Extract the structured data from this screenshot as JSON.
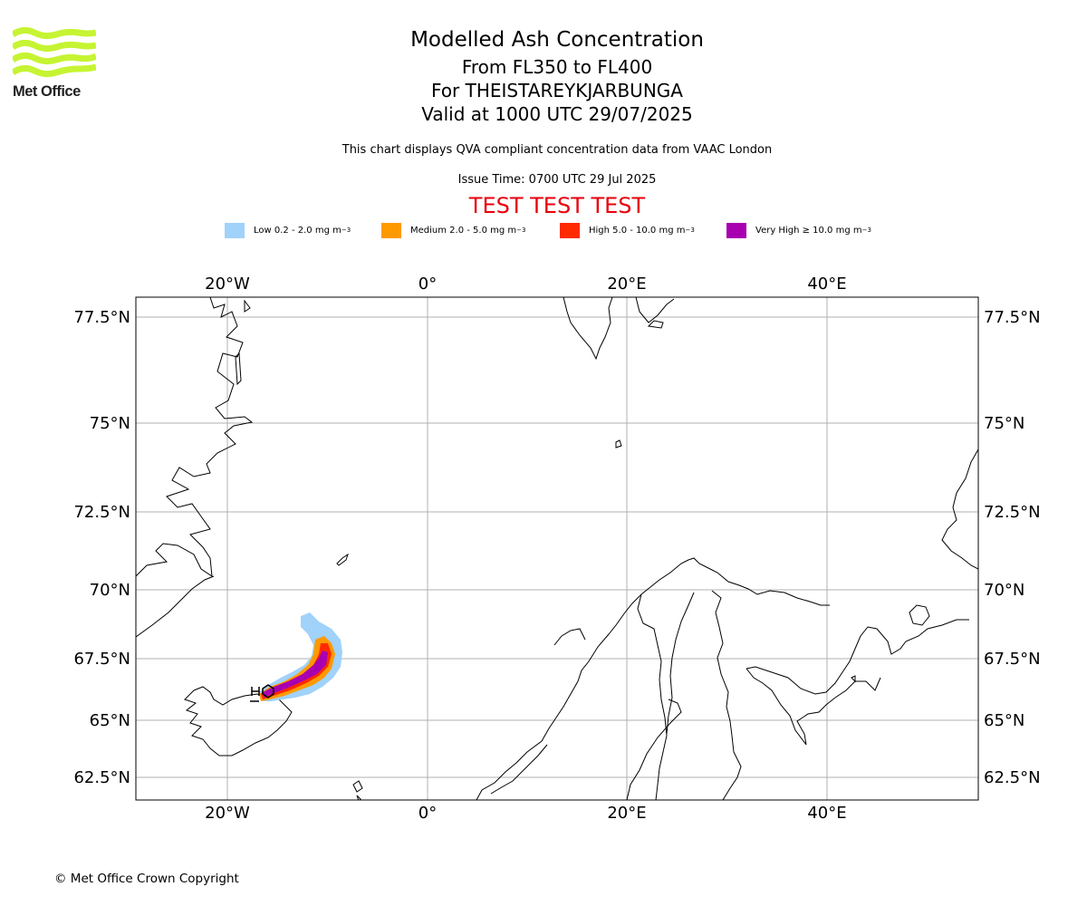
{
  "logo": {
    "text": "Met Office",
    "colors": {
      "waves": "#c6f432",
      "text": "#222222"
    }
  },
  "header": {
    "title": "Modelled Ash Concentration",
    "levels": "From FL350 to FL400",
    "volcano": "For THEISTAREYKJARBUNGA",
    "valid": "Valid at 1000 UTC 29/07/2025",
    "description": "This chart displays QVA compliant concentration data from VAAC London",
    "issue_time": "Issue Time: 0700 UTC 29 Jul 2025",
    "test_banner": "TEST TEST TEST"
  },
  "legend": [
    {
      "label": "Low 0.2 - 2.0 mg m",
      "unit_exp": "−3",
      "color": "#a0d2fa",
      "icon": "low-swatch"
    },
    {
      "label": "Medium 2.0 - 5.0 mg m",
      "unit_exp": "−3",
      "color": "#ff9900",
      "icon": "medium-swatch"
    },
    {
      "label": "High 5.0 - 10.0 mg m",
      "unit_exp": "−3",
      "color": "#ff2a00",
      "icon": "high-swatch"
    },
    {
      "label": "Very High ≥ 10.0 mg m",
      "unit_exp": "−3",
      "color": "#a800b0",
      "icon": "very-high-swatch"
    }
  ],
  "map": {
    "lon_range": [
      -29,
      55
    ],
    "lat_range": [
      61.9,
      78.3
    ],
    "lon_ticks": [
      "20°W",
      "0°",
      "20°E",
      "40°E"
    ],
    "lat_ticks": [
      "77.5°N",
      "75°N",
      "72.5°N",
      "70°N",
      "67.5°N",
      "65°N",
      "62.5°N"
    ],
    "grid": true,
    "volcano_marker": "volcano-icon"
  },
  "footer": {
    "copyright": "© Met Office Crown Copyright"
  }
}
